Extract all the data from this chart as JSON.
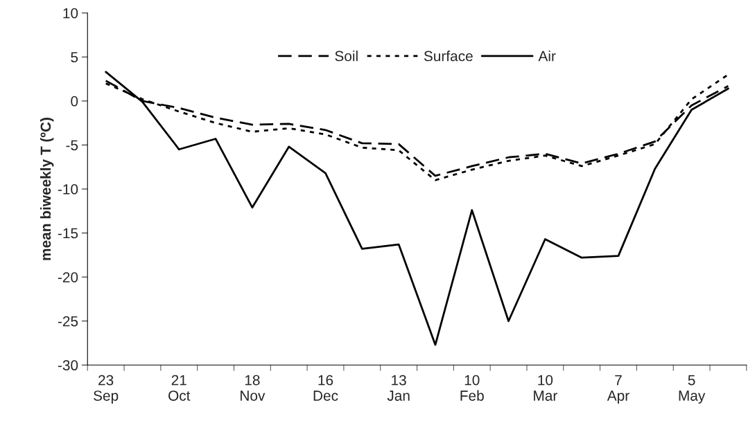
{
  "chart_data": {
    "type": "line",
    "ylabel": "mean biweekly T (ºC)",
    "categories": [
      "23\nSep",
      null,
      "21\nOct",
      null,
      "18\nNov",
      null,
      "16\nDec",
      null,
      "13\nJan",
      null,
      "10\nFeb",
      null,
      "10\nMar",
      null,
      "7\nApr",
      null,
      "5\nMay",
      null
    ],
    "series": [
      {
        "name": "Soil",
        "color": "#000000",
        "line_style": "dashed",
        "values": [
          2.3,
          0.0,
          -0.8,
          -1.9,
          -2.7,
          -2.6,
          -3.3,
          -4.8,
          -4.9,
          -8.5,
          -7.4,
          -6.4,
          -6.0,
          -7.1,
          -6.0,
          -4.6,
          -0.5,
          1.7
        ]
      },
      {
        "name": "Surface",
        "color": "#000000",
        "line_style": "dotted",
        "values": [
          2.0,
          0.2,
          -1.2,
          -2.5,
          -3.5,
          -3.1,
          -3.8,
          -5.3,
          -5.6,
          -9.0,
          -7.8,
          -6.8,
          -6.2,
          -7.4,
          -6.2,
          -4.9,
          0.2,
          3.0
        ]
      },
      {
        "name": "Air",
        "color": "#000000",
        "line_style": "solid",
        "values": [
          3.3,
          -0.1,
          -5.5,
          -4.3,
          -12.1,
          -5.2,
          -8.2,
          -16.8,
          -16.3,
          -27.7,
          -12.4,
          -25.0,
          -15.7,
          -17.8,
          -17.6,
          -7.7,
          -1.0,
          1.4
        ]
      }
    ],
    "ylim": [
      -30,
      10
    ],
    "yticks": [
      -30,
      -25,
      -20,
      -15,
      -10,
      -5,
      0,
      5,
      10
    ],
    "grid": false,
    "legend": "top",
    "marker": "none"
  }
}
